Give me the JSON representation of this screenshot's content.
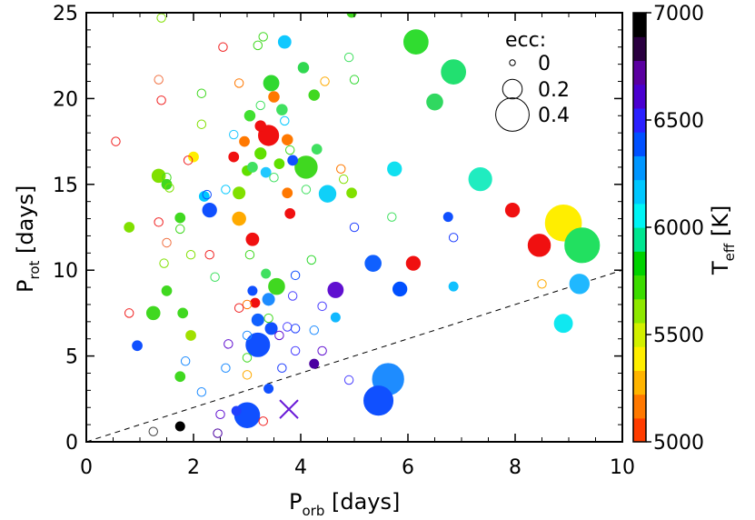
{
  "chart_data": {
    "type": "scatter",
    "title": "",
    "xlabel": "P",
    "xlabel_sub": "orb",
    "xlabel_unit": " [days]",
    "ylabel": "P",
    "ylabel_sub": "rot",
    "ylabel_unit": " [days]",
    "xlim": [
      0,
      10
    ],
    "ylim": [
      0,
      25
    ],
    "x_ticks": [
      "0",
      "2",
      "4",
      "6",
      "8",
      "10"
    ],
    "y_ticks": [
      "0",
      "5",
      "10",
      "15",
      "20",
      "25"
    ],
    "reference_line": {
      "style": "dashed",
      "x": [
        0,
        10
      ],
      "y": [
        0,
        10
      ]
    },
    "legend": {
      "title": "ecc:",
      "position": "top-right",
      "entries": [
        {
          "label": "0",
          "ecc": 0.0
        },
        {
          "label": "0.2",
          "ecc": 0.2
        },
        {
          "label": "0.4",
          "ecc": 0.4
        }
      ]
    },
    "colorbar": {
      "title": "T",
      "title_sub": "eff",
      "title_unit": " [K]",
      "range": [
        5000,
        7000
      ],
      "ticks": [
        "5000",
        "5500",
        "6000",
        "6500",
        "7000"
      ],
      "colors": [
        "#ff3c00",
        "#ff7800",
        "#ffb400",
        "#ffee00",
        "#d2f000",
        "#8ee800",
        "#3cdc00",
        "#00d200",
        "#00e690",
        "#00f5f5",
        "#00c8ff",
        "#0096ff",
        "#0050ff",
        "#2a20ff",
        "#4a00d0",
        "#5a00a0",
        "#2a0040",
        "#000000"
      ]
    },
    "special_marker": {
      "symbol": "X",
      "x": 3.78,
      "y": 1.9,
      "color": "#6a1ad8"
    },
    "points": [
      {
        "x": 8.9,
        "y": 12.75,
        "ecc": 0.44,
        "color": "#ffee00",
        "filled": true
      },
      {
        "x": 9.25,
        "y": 11.45,
        "ecc": 0.42,
        "color": "#22e060",
        "filled": true
      },
      {
        "x": 8.45,
        "y": 11.45,
        "ecc": 0.24,
        "color": "#f01010",
        "filled": true
      },
      {
        "x": 5.63,
        "y": 3.65,
        "ecc": 0.37,
        "color": "#1e8cff",
        "filled": true
      },
      {
        "x": 5.45,
        "y": 2.4,
        "ecc": 0.34,
        "color": "#1050ff",
        "filled": true
      },
      {
        "x": 3.0,
        "y": 1.55,
        "ecc": 0.28,
        "color": "#1050ff",
        "filled": true
      },
      {
        "x": 3.2,
        "y": 5.65,
        "ecc": 0.26,
        "color": "#1050ff",
        "filled": true
      },
      {
        "x": 6.15,
        "y": 23.3,
        "ecc": 0.27,
        "color": "#30dc30",
        "filled": true
      },
      {
        "x": 6.85,
        "y": 21.55,
        "ecc": 0.27,
        "color": "#22e070",
        "filled": true
      },
      {
        "x": 7.35,
        "y": 15.3,
        "ecc": 0.25,
        "color": "#20ecc0",
        "filled": true
      },
      {
        "x": 4.1,
        "y": 16.0,
        "ecc": 0.24,
        "color": "#40d820",
        "filled": true
      },
      {
        "x": 3.4,
        "y": 17.85,
        "ecc": 0.21,
        "color": "#f01010",
        "filled": true
      },
      {
        "x": 9.2,
        "y": 9.2,
        "ecc": 0.2,
        "color": "#20b8ff",
        "filled": true
      },
      {
        "x": 8.9,
        "y": 6.9,
        "ecc": 0.18,
        "color": "#10e8f0",
        "filled": true
      },
      {
        "x": 6.5,
        "y": 19.8,
        "ecc": 0.15,
        "color": "#30d860",
        "filled": true
      },
      {
        "x": 4.5,
        "y": 14.45,
        "ecc": 0.16,
        "color": "#10d0f8",
        "filled": true
      },
      {
        "x": 5.35,
        "y": 10.4,
        "ecc": 0.15,
        "color": "#1060ff",
        "filled": true
      },
      {
        "x": 4.65,
        "y": 8.85,
        "ecc": 0.14,
        "color": "#6010d0",
        "filled": true
      },
      {
        "x": 6.1,
        "y": 10.4,
        "ecc": 0.12,
        "color": "#f01010",
        "filled": true
      },
      {
        "x": 3.55,
        "y": 9.05,
        "ecc": 0.15,
        "color": "#40d820",
        "filled": true
      },
      {
        "x": 3.45,
        "y": 20.9,
        "ecc": 0.14,
        "color": "#30d830",
        "filled": true
      },
      {
        "x": 5.75,
        "y": 15.9,
        "ecc": 0.12,
        "color": "#10e0f0",
        "filled": true
      },
      {
        "x": 7.95,
        "y": 13.5,
        "ecc": 0.12,
        "color": "#f01010",
        "filled": true
      },
      {
        "x": 5.85,
        "y": 8.9,
        "ecc": 0.12,
        "color": "#0050ff",
        "filled": true
      },
      {
        "x": 2.3,
        "y": 13.5,
        "ecc": 0.12,
        "color": "#1050ff",
        "filled": true
      },
      {
        "x": 3.1,
        "y": 11.8,
        "ecc": 0.1,
        "color": "#f01010",
        "filled": true
      },
      {
        "x": 2.85,
        "y": 13.0,
        "ecc": 0.11,
        "color": "#ffaa00",
        "filled": true
      },
      {
        "x": 1.35,
        "y": 15.5,
        "ecc": 0.11,
        "color": "#80e000",
        "filled": true
      },
      {
        "x": 1.25,
        "y": 7.5,
        "ecc": 0.11,
        "color": "#40d820",
        "filled": true
      },
      {
        "x": 3.7,
        "y": 23.3,
        "ecc": 0.1,
        "color": "#10c8ff",
        "filled": true
      },
      {
        "x": 3.2,
        "y": 7.1,
        "ecc": 0.09,
        "color": "#1060ff",
        "filled": true
      },
      {
        "x": 3.4,
        "y": 8.3,
        "ecc": 0.09,
        "color": "#1e8cff",
        "filled": true
      },
      {
        "x": 3.45,
        "y": 6.6,
        "ecc": 0.09,
        "color": "#1050ff",
        "filled": true
      },
      {
        "x": 2.85,
        "y": 14.5,
        "ecc": 0.09,
        "color": "#80e000",
        "filled": true
      },
      {
        "x": 3.25,
        "y": 16.8,
        "ecc": 0.08,
        "color": "#60e000",
        "filled": true
      },
      {
        "x": 4.25,
        "y": 20.2,
        "ecc": 0.07,
        "color": "#40d820",
        "filled": true
      },
      {
        "x": 4.05,
        "y": 21.8,
        "ecc": 0.07,
        "color": "#30d850",
        "filled": true
      },
      {
        "x": 3.5,
        "y": 20.1,
        "ecc": 0.07,
        "color": "#ff7800",
        "filled": true
      },
      {
        "x": 3.65,
        "y": 19.35,
        "ecc": 0.07,
        "color": "#40e060",
        "filled": true
      },
      {
        "x": 3.05,
        "y": 19.0,
        "ecc": 0.07,
        "color": "#40e030",
        "filled": true
      },
      {
        "x": 3.25,
        "y": 18.4,
        "ecc": 0.07,
        "color": "#f01010",
        "filled": true
      },
      {
        "x": 3.75,
        "y": 17.6,
        "ecc": 0.07,
        "color": "#ff7800",
        "filled": true
      },
      {
        "x": 3.35,
        "y": 15.7,
        "ecc": 0.06,
        "color": "#20c8ff",
        "filled": true
      },
      {
        "x": 4.3,
        "y": 17.05,
        "ecc": 0.06,
        "color": "#40e060",
        "filled": true
      },
      {
        "x": 3.0,
        "y": 15.8,
        "ecc": 0.06,
        "color": "#60e000",
        "filled": true
      },
      {
        "x": 2.75,
        "y": 16.6,
        "ecc": 0.06,
        "color": "#f01010",
        "filled": true
      },
      {
        "x": 2.95,
        "y": 17.5,
        "ecc": 0.06,
        "color": "#ff7800",
        "filled": true
      },
      {
        "x": 3.1,
        "y": 16.0,
        "ecc": 0.06,
        "color": "#40e060",
        "filled": true
      },
      {
        "x": 3.6,
        "y": 16.2,
        "ecc": 0.06,
        "color": "#60e000",
        "filled": true
      },
      {
        "x": 3.75,
        "y": 14.5,
        "ecc": 0.06,
        "color": "#ff7800",
        "filled": true
      },
      {
        "x": 3.8,
        "y": 13.3,
        "ecc": 0.06,
        "color": "#f01010",
        "filled": true
      },
      {
        "x": 3.85,
        "y": 16.4,
        "ecc": 0.06,
        "color": "#1050ff",
        "filled": true
      },
      {
        "x": 4.95,
        "y": 14.5,
        "ecc": 0.06,
        "color": "#80e000",
        "filled": true
      },
      {
        "x": 2.2,
        "y": 14.3,
        "ecc": 0.06,
        "color": "#00c8ff",
        "filled": true
      },
      {
        "x": 2.0,
        "y": 16.6,
        "ecc": 0.06,
        "color": "#ffee00",
        "filled": true
      },
      {
        "x": 1.75,
        "y": 13.05,
        "ecc": 0.06,
        "color": "#40d820",
        "filled": true
      },
      {
        "x": 1.5,
        "y": 15.0,
        "ecc": 0.06,
        "color": "#40d820",
        "filled": true
      },
      {
        "x": 0.8,
        "y": 12.5,
        "ecc": 0.06,
        "color": "#80e000",
        "filled": true
      },
      {
        "x": 1.5,
        "y": 8.8,
        "ecc": 0.06,
        "color": "#40d820",
        "filled": true
      },
      {
        "x": 1.8,
        "y": 7.5,
        "ecc": 0.06,
        "color": "#40d820",
        "filled": true
      },
      {
        "x": 1.95,
        "y": 6.2,
        "ecc": 0.06,
        "color": "#a0e000",
        "filled": true
      },
      {
        "x": 1.75,
        "y": 3.8,
        "ecc": 0.06,
        "color": "#40d820",
        "filled": true
      },
      {
        "x": 0.95,
        "y": 5.6,
        "ecc": 0.06,
        "color": "#1050ff",
        "filled": true
      },
      {
        "x": 3.15,
        "y": 8.1,
        "ecc": 0.05,
        "color": "#f01010",
        "filled": true
      },
      {
        "x": 3.35,
        "y": 9.8,
        "ecc": 0.05,
        "color": "#40e060",
        "filled": true
      },
      {
        "x": 3.1,
        "y": 8.8,
        "ecc": 0.05,
        "color": "#1050ff",
        "filled": true
      },
      {
        "x": 3.4,
        "y": 3.1,
        "ecc": 0.05,
        "color": "#1050ff",
        "filled": true
      },
      {
        "x": 4.25,
        "y": 4.55,
        "ecc": 0.05,
        "color": "#4a00a0",
        "filled": true
      },
      {
        "x": 4.65,
        "y": 7.25,
        "ecc": 0.05,
        "color": "#10b8ff",
        "filled": true
      },
      {
        "x": 6.75,
        "y": 13.1,
        "ecc": 0.05,
        "color": "#1050ff",
        "filled": true
      },
      {
        "x": 6.85,
        "y": 9.05,
        "ecc": 0.05,
        "color": "#10c0ff",
        "filled": true
      },
      {
        "x": 1.75,
        "y": 0.9,
        "ecc": 0.05,
        "color": "#000000",
        "filled": true
      },
      {
        "x": 2.8,
        "y": 1.8,
        "ecc": 0.05,
        "color": "#2040ff",
        "filled": true
      },
      {
        "x": 4.95,
        "y": 25.0,
        "ecc": 0.05,
        "color": "#40d820",
        "filled": true
      },
      {
        "x": 1.4,
        "y": 24.7,
        "ecc": 0.04,
        "color": "#80e000",
        "filled": false
      },
      {
        "x": 3.3,
        "y": 23.6,
        "ecc": 0.04,
        "color": "#40d820",
        "filled": false
      },
      {
        "x": 3.2,
        "y": 23.1,
        "ecc": 0.04,
        "color": "#40d820",
        "filled": false
      },
      {
        "x": 2.55,
        "y": 23.0,
        "ecc": 0.04,
        "color": "#f02020",
        "filled": false
      },
      {
        "x": 4.9,
        "y": 22.4,
        "ecc": 0.04,
        "color": "#40e060",
        "filled": false
      },
      {
        "x": 5.0,
        "y": 21.1,
        "ecc": 0.04,
        "color": "#30d830",
        "filled": false
      },
      {
        "x": 1.35,
        "y": 21.1,
        "ecc": 0.04,
        "color": "#f07040",
        "filled": false
      },
      {
        "x": 2.85,
        "y": 20.9,
        "ecc": 0.04,
        "color": "#ff7800",
        "filled": false
      },
      {
        "x": 4.45,
        "y": 21.0,
        "ecc": 0.04,
        "color": "#ffaa00",
        "filled": false
      },
      {
        "x": 2.15,
        "y": 20.3,
        "ecc": 0.04,
        "color": "#40d820",
        "filled": false
      },
      {
        "x": 1.4,
        "y": 19.9,
        "ecc": 0.04,
        "color": "#f02020",
        "filled": false
      },
      {
        "x": 3.25,
        "y": 19.6,
        "ecc": 0.04,
        "color": "#40e060",
        "filled": false
      },
      {
        "x": 3.7,
        "y": 18.7,
        "ecc": 0.04,
        "color": "#00c8ff",
        "filled": false
      },
      {
        "x": 2.15,
        "y": 18.5,
        "ecc": 0.04,
        "color": "#80e000",
        "filled": false
      },
      {
        "x": 0.55,
        "y": 17.5,
        "ecc": 0.04,
        "color": "#f02020",
        "filled": false
      },
      {
        "x": 2.75,
        "y": 17.9,
        "ecc": 0.04,
        "color": "#20c8ff",
        "filled": false
      },
      {
        "x": 3.8,
        "y": 17.0,
        "ecc": 0.04,
        "color": "#40d820",
        "filled": false
      },
      {
        "x": 1.9,
        "y": 16.4,
        "ecc": 0.04,
        "color": "#f02020",
        "filled": false
      },
      {
        "x": 1.5,
        "y": 15.4,
        "ecc": 0.04,
        "color": "#40d820",
        "filled": false
      },
      {
        "x": 1.55,
        "y": 14.8,
        "ecc": 0.04,
        "color": "#80e000",
        "filled": false
      },
      {
        "x": 2.25,
        "y": 14.4,
        "ecc": 0.04,
        "color": "#1050ff",
        "filled": false
      },
      {
        "x": 2.6,
        "y": 14.7,
        "ecc": 0.04,
        "color": "#00c8ff",
        "filled": false
      },
      {
        "x": 4.1,
        "y": 14.7,
        "ecc": 0.04,
        "color": "#40e060",
        "filled": false
      },
      {
        "x": 4.8,
        "y": 15.3,
        "ecc": 0.04,
        "color": "#80e000",
        "filled": false
      },
      {
        "x": 4.75,
        "y": 15.9,
        "ecc": 0.04,
        "color": "#ff7800",
        "filled": false
      },
      {
        "x": 3.5,
        "y": 15.4,
        "ecc": 0.04,
        "color": "#40e060",
        "filled": false
      },
      {
        "x": 1.35,
        "y": 12.8,
        "ecc": 0.04,
        "color": "#f02020",
        "filled": false
      },
      {
        "x": 1.75,
        "y": 12.4,
        "ecc": 0.04,
        "color": "#40d820",
        "filled": false
      },
      {
        "x": 1.5,
        "y": 11.6,
        "ecc": 0.04,
        "color": "#f07040",
        "filled": false
      },
      {
        "x": 1.45,
        "y": 10.4,
        "ecc": 0.04,
        "color": "#80e000",
        "filled": false
      },
      {
        "x": 1.95,
        "y": 10.9,
        "ecc": 0.04,
        "color": "#80e000",
        "filled": false
      },
      {
        "x": 2.3,
        "y": 10.9,
        "ecc": 0.04,
        "color": "#f02020",
        "filled": false
      },
      {
        "x": 2.4,
        "y": 9.6,
        "ecc": 0.04,
        "color": "#40e060",
        "filled": false
      },
      {
        "x": 3.05,
        "y": 10.9,
        "ecc": 0.04,
        "color": "#40d820",
        "filled": false
      },
      {
        "x": 4.2,
        "y": 10.6,
        "ecc": 0.04,
        "color": "#30d830",
        "filled": false
      },
      {
        "x": 5.0,
        "y": 12.5,
        "ecc": 0.04,
        "color": "#2040ff",
        "filled": false
      },
      {
        "x": 5.7,
        "y": 13.1,
        "ecc": 0.04,
        "color": "#40e060",
        "filled": false
      },
      {
        "x": 6.85,
        "y": 11.9,
        "ecc": 0.04,
        "color": "#2040ff",
        "filled": false
      },
      {
        "x": 8.5,
        "y": 9.2,
        "ecc": 0.04,
        "color": "#ffaa00",
        "filled": false
      },
      {
        "x": 3.9,
        "y": 9.7,
        "ecc": 0.04,
        "color": "#1050ff",
        "filled": false
      },
      {
        "x": 3.85,
        "y": 8.5,
        "ecc": 0.04,
        "color": "#4a40ff",
        "filled": false
      },
      {
        "x": 3.0,
        "y": 8.0,
        "ecc": 0.04,
        "color": "#ff7800",
        "filled": false
      },
      {
        "x": 2.85,
        "y": 7.8,
        "ecc": 0.04,
        "color": "#f02020",
        "filled": false
      },
      {
        "x": 4.4,
        "y": 7.9,
        "ecc": 0.04,
        "color": "#4a40ff",
        "filled": false
      },
      {
        "x": 3.4,
        "y": 7.2,
        "ecc": 0.04,
        "color": "#40d820",
        "filled": false
      },
      {
        "x": 3.75,
        "y": 6.7,
        "ecc": 0.04,
        "color": "#4a40ff",
        "filled": false
      },
      {
        "x": 3.9,
        "y": 6.6,
        "ecc": 0.04,
        "color": "#2040ff",
        "filled": false
      },
      {
        "x": 4.25,
        "y": 6.5,
        "ecc": 0.04,
        "color": "#1e8cff",
        "filled": false
      },
      {
        "x": 3.6,
        "y": 6.2,
        "ecc": 0.04,
        "color": "#6010d0",
        "filled": false
      },
      {
        "x": 3.0,
        "y": 6.2,
        "ecc": 0.04,
        "color": "#1e8cff",
        "filled": false
      },
      {
        "x": 2.65,
        "y": 5.7,
        "ecc": 0.04,
        "color": "#6010d0",
        "filled": false
      },
      {
        "x": 3.9,
        "y": 5.3,
        "ecc": 0.04,
        "color": "#4a40ff",
        "filled": false
      },
      {
        "x": 4.4,
        "y": 5.3,
        "ecc": 0.04,
        "color": "#6010d0",
        "filled": false
      },
      {
        "x": 3.0,
        "y": 4.9,
        "ecc": 0.04,
        "color": "#40d820",
        "filled": false
      },
      {
        "x": 3.65,
        "y": 4.3,
        "ecc": 0.04,
        "color": "#2040ff",
        "filled": false
      },
      {
        "x": 2.6,
        "y": 4.3,
        "ecc": 0.04,
        "color": "#1e8cff",
        "filled": false
      },
      {
        "x": 3.0,
        "y": 3.9,
        "ecc": 0.04,
        "color": "#ffaa00",
        "filled": false
      },
      {
        "x": 1.85,
        "y": 4.7,
        "ecc": 0.04,
        "color": "#1e8cff",
        "filled": false
      },
      {
        "x": 0.8,
        "y": 7.5,
        "ecc": 0.04,
        "color": "#f02020",
        "filled": false
      },
      {
        "x": 4.9,
        "y": 3.6,
        "ecc": 0.04,
        "color": "#4a40ff",
        "filled": false
      },
      {
        "x": 2.15,
        "y": 2.9,
        "ecc": 0.04,
        "color": "#1e8cff",
        "filled": false
      },
      {
        "x": 2.5,
        "y": 1.6,
        "ecc": 0.04,
        "color": "#6010d0",
        "filled": false
      },
      {
        "x": 2.45,
        "y": 0.5,
        "ecc": 0.04,
        "color": "#4a00a0",
        "filled": false
      },
      {
        "x": 1.25,
        "y": 0.6,
        "ecc": 0.04,
        "color": "#404040",
        "filled": false
      },
      {
        "x": 3.3,
        "y": 1.2,
        "ecc": 0.04,
        "color": "#f02020",
        "filled": false
      }
    ]
  }
}
